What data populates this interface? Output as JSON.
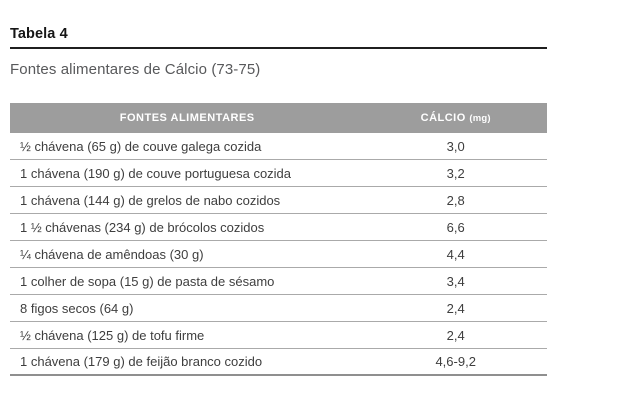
{
  "header": {
    "table_label": "Tabela 4",
    "title": "Fontes alimentares de Cálcio (73-75)"
  },
  "table": {
    "columns": [
      "FONTES ALIMENTARES",
      "CÁLCIO"
    ],
    "unit": "(mg)",
    "rows": [
      {
        "food": "½ chávena (65 g) de couve galega cozida",
        "value": "3,0"
      },
      {
        "food": "1 chávena (190 g) de couve portuguesa cozida",
        "value": "3,2"
      },
      {
        "food": "1 chávena (144 g) de grelos de nabo cozidos",
        "value": "2,8"
      },
      {
        "food": "1 ½ chávenas (234 g) de brócolos cozidos",
        "value": "6,6"
      },
      {
        "food": "¼ chávena de amêndoas (30 g)",
        "value": "4,4"
      },
      {
        "food": "1 colher de sopa (15 g) de pasta de sésamo",
        "value": "3,4"
      },
      {
        "food": "8 figos secos (64 g)",
        "value": "2,4"
      },
      {
        "food": "½ chávena (125 g) de tofu firme",
        "value": "2,4"
      },
      {
        "food": "1 chávena (179 g) de feijão branco cozido",
        "value": "4,6-9,2"
      }
    ]
  },
  "colors": {
    "header_bg": "#9d9d9d",
    "header_text": "#ffffff",
    "row_text": "#3e3e3e",
    "row_separator": "#aaaaaa",
    "bottom_rule": "#8f8f8f",
    "title_rule": "#1f1f1f",
    "subtitle_text": "#58595b",
    "page_bg": "#ffffff"
  }
}
